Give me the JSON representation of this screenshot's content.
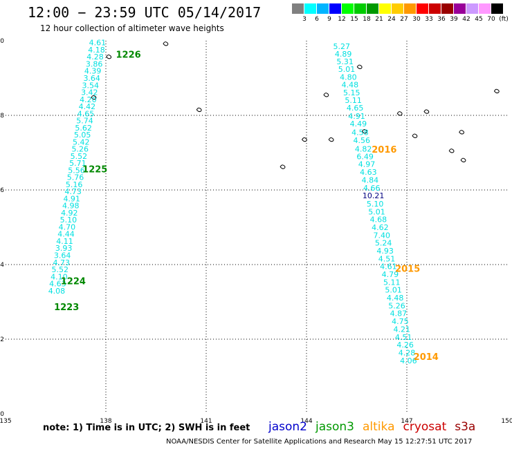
{
  "title": "12:00 − 23:59 UTC 05/14/2017",
  "subtitle": "12 hour collection of altimeter wave heights",
  "legend": {
    "colors": [
      "#808080",
      "#00ffff",
      "#00b4ff",
      "#0000ff",
      "#00ff00",
      "#00cc00",
      "#009900",
      "#ffff00",
      "#ffcc00",
      "#ff9900",
      "#ff0000",
      "#cc0000",
      "#990000",
      "#990099",
      "#cc99ff",
      "#ff99ff",
      "#000000"
    ],
    "ticks": [
      "3",
      "6",
      "9",
      "12",
      "15",
      "18",
      "21",
      "24",
      "27",
      "30",
      "33",
      "36",
      "39",
      "42",
      "45",
      "70",
      "(ft)"
    ]
  },
  "map": {
    "lon_range": [
      135,
      150
    ],
    "lat_range": [
      0,
      10
    ],
    "lon_ticks": [
      "135",
      "138",
      "141",
      "144",
      "147",
      "150"
    ],
    "lat_ticks": [
      "0",
      "2",
      "4",
      "6",
      "8",
      "10"
    ],
    "grid": "dotted",
    "wave_color": "#00e0e0",
    "anomaly_color": "#000080",
    "tracks": [
      {
        "satellite": "jason3",
        "points": [
          {
            "lon": 137.75,
            "lat": 9.95,
            "swh": "4.61"
          },
          {
            "lon": 137.72,
            "lat": 9.76,
            "swh": "4.18"
          },
          {
            "lon": 137.68,
            "lat": 9.57,
            "swh": "4.28"
          },
          {
            "lon": 137.65,
            "lat": 9.38,
            "swh": "3.86"
          },
          {
            "lon": 137.61,
            "lat": 9.19,
            "swh": "4.39"
          },
          {
            "lon": 137.58,
            "lat": 9.0,
            "swh": "3.64"
          },
          {
            "lon": 137.54,
            "lat": 8.81,
            "swh": "3.54"
          },
          {
            "lon": 137.51,
            "lat": 8.62,
            "swh": "3.42"
          },
          {
            "lon": 137.47,
            "lat": 8.43,
            "swh": "4.20"
          },
          {
            "lon": 137.44,
            "lat": 8.24,
            "swh": "4.42"
          },
          {
            "lon": 137.4,
            "lat": 8.05,
            "swh": "4.65"
          },
          {
            "lon": 137.37,
            "lat": 7.86,
            "swh": "5.74"
          },
          {
            "lon": 137.33,
            "lat": 7.67,
            "swh": "5.62"
          },
          {
            "lon": 137.3,
            "lat": 7.48,
            "swh": "5.05"
          },
          {
            "lon": 137.26,
            "lat": 7.29,
            "swh": "5.42"
          },
          {
            "lon": 137.23,
            "lat": 7.1,
            "swh": "5.26"
          },
          {
            "lon": 137.19,
            "lat": 6.91,
            "swh": "5.52"
          },
          {
            "lon": 137.16,
            "lat": 6.72,
            "swh": "5.71"
          },
          {
            "lon": 137.12,
            "lat": 6.53,
            "swh": "5.56"
          },
          {
            "lon": 137.09,
            "lat": 6.34,
            "swh": "5.76"
          },
          {
            "lon": 137.05,
            "lat": 6.15,
            "swh": "5.16"
          },
          {
            "lon": 137.02,
            "lat": 5.96,
            "swh": "4.73"
          },
          {
            "lon": 136.98,
            "lat": 5.77,
            "swh": "4.91"
          },
          {
            "lon": 136.95,
            "lat": 5.58,
            "swh": "4.98"
          },
          {
            "lon": 136.91,
            "lat": 5.39,
            "swh": "4.92"
          },
          {
            "lon": 136.88,
            "lat": 5.2,
            "swh": "5.10"
          },
          {
            "lon": 136.84,
            "lat": 5.01,
            "swh": "4.70"
          },
          {
            "lon": 136.81,
            "lat": 4.82,
            "swh": "4.44"
          },
          {
            "lon": 136.77,
            "lat": 4.63,
            "swh": "4.11"
          },
          {
            "lon": 136.74,
            "lat": 4.44,
            "swh": "3.93"
          },
          {
            "lon": 136.7,
            "lat": 4.25,
            "swh": "3.64"
          },
          {
            "lon": 136.67,
            "lat": 4.06,
            "swh": "4.73"
          },
          {
            "lon": 136.63,
            "lat": 3.87,
            "swh": "5.52"
          },
          {
            "lon": 136.6,
            "lat": 3.68,
            "swh": "4.10"
          },
          {
            "lon": 136.56,
            "lat": 3.49,
            "swh": "4.63"
          },
          {
            "lon": 136.53,
            "lat": 3.3,
            "swh": "4.08"
          }
        ],
        "times": [
          {
            "lon": 138.3,
            "lat": 9.62,
            "text": "1226"
          },
          {
            "lon": 137.3,
            "lat": 6.55,
            "text": "1225"
          },
          {
            "lon": 136.65,
            "lat": 3.55,
            "text": "1224"
          },
          {
            "lon": 136.45,
            "lat": 2.85,
            "text": "1223"
          }
        ]
      },
      {
        "satellite": "altika",
        "points": [
          {
            "lon": 145.05,
            "lat": 9.85,
            "swh": "5.27"
          },
          {
            "lon": 145.1,
            "lat": 9.65,
            "swh": "4.89"
          },
          {
            "lon": 145.15,
            "lat": 9.44,
            "swh": "5.31"
          },
          {
            "lon": 145.2,
            "lat": 9.24,
            "swh": "5.01"
          },
          {
            "lon": 145.25,
            "lat": 9.03,
            "swh": "4.80"
          },
          {
            "lon": 145.3,
            "lat": 8.82,
            "swh": "4.48"
          },
          {
            "lon": 145.35,
            "lat": 8.61,
            "swh": "5.15"
          },
          {
            "lon": 145.4,
            "lat": 8.41,
            "swh": "5.11"
          },
          {
            "lon": 145.45,
            "lat": 8.2,
            "swh": "4.65"
          },
          {
            "lon": 145.5,
            "lat": 7.98,
            "swh": "4.91"
          },
          {
            "lon": 145.55,
            "lat": 7.78,
            "swh": "4.49"
          },
          {
            "lon": 145.6,
            "lat": 7.55,
            "swh": "4.58"
          },
          {
            "lon": 145.65,
            "lat": 7.33,
            "swh": "4.56"
          },
          {
            "lon": 145.7,
            "lat": 7.1,
            "swh": "4.82"
          },
          {
            "lon": 145.75,
            "lat": 6.9,
            "swh": "6.49"
          },
          {
            "lon": 145.8,
            "lat": 6.69,
            "swh": "4.97"
          },
          {
            "lon": 145.85,
            "lat": 6.48,
            "swh": "4.63"
          },
          {
            "lon": 145.9,
            "lat": 6.27,
            "swh": "4.84"
          },
          {
            "lon": 145.95,
            "lat": 6.06,
            "swh": "4.66"
          },
          {
            "lon": 146.0,
            "lat": 5.85,
            "swh": "10.21"
          },
          {
            "lon": 146.05,
            "lat": 5.63,
            "swh": "5.10"
          },
          {
            "lon": 146.1,
            "lat": 5.42,
            "swh": "5.01"
          },
          {
            "lon": 146.15,
            "lat": 5.21,
            "swh": "4.68"
          },
          {
            "lon": 146.2,
            "lat": 5.0,
            "swh": "4.62"
          },
          {
            "lon": 146.25,
            "lat": 4.79,
            "swh": "7.40"
          },
          {
            "lon": 146.3,
            "lat": 4.58,
            "swh": "5.24"
          },
          {
            "lon": 146.35,
            "lat": 4.37,
            "swh": "4.93"
          },
          {
            "lon": 146.4,
            "lat": 4.16,
            "swh": "4.51"
          },
          {
            "lon": 146.45,
            "lat": 3.95,
            "swh": "4.61"
          },
          {
            "lon": 146.5,
            "lat": 3.74,
            "swh": "4.79"
          },
          {
            "lon": 146.55,
            "lat": 3.53,
            "swh": "5.11"
          },
          {
            "lon": 146.6,
            "lat": 3.32,
            "swh": "5.01"
          },
          {
            "lon": 146.65,
            "lat": 3.11,
            "swh": "4.48"
          },
          {
            "lon": 146.7,
            "lat": 2.9,
            "swh": "5.26"
          },
          {
            "lon": 146.75,
            "lat": 2.69,
            "swh": "4.87"
          },
          {
            "lon": 146.8,
            "lat": 2.48,
            "swh": "4.75"
          },
          {
            "lon": 146.85,
            "lat": 2.27,
            "swh": "4.21"
          },
          {
            "lon": 146.9,
            "lat": 2.06,
            "swh": "4.51"
          },
          {
            "lon": 146.95,
            "lat": 1.85,
            "swh": "4.26"
          },
          {
            "lon": 147.0,
            "lat": 1.64,
            "swh": "4.28"
          },
          {
            "lon": 147.05,
            "lat": 1.43,
            "swh": "4.06"
          }
        ],
        "times": [
          {
            "lon": 145.95,
            "lat": 7.07,
            "text": "2016"
          },
          {
            "lon": 146.65,
            "lat": 3.88,
            "text": "2015"
          },
          {
            "lon": 147.2,
            "lat": 1.52,
            "text": "2014"
          }
        ]
      }
    ],
    "islands": [
      {
        "lon": 138.1,
        "lat": 9.57
      },
      {
        "lon": 137.65,
        "lat": 8.48
      },
      {
        "lon": 139.8,
        "lat": 9.92
      },
      {
        "lon": 140.8,
        "lat": 8.15
      },
      {
        "lon": 143.95,
        "lat": 7.35
      },
      {
        "lon": 143.3,
        "lat": 6.62
      },
      {
        "lon": 144.6,
        "lat": 8.55
      },
      {
        "lon": 144.75,
        "lat": 7.35
      },
      {
        "lon": 145.6,
        "lat": 9.3
      },
      {
        "lon": 145.75,
        "lat": 7.57
      },
      {
        "lon": 147.25,
        "lat": 7.45
      },
      {
        "lon": 146.8,
        "lat": 8.05
      },
      {
        "lon": 147.6,
        "lat": 8.1
      },
      {
        "lon": 148.65,
        "lat": 7.55
      },
      {
        "lon": 148.35,
        "lat": 7.05
      },
      {
        "lon": 148.7,
        "lat": 6.8
      },
      {
        "lon": 149.7,
        "lat": 8.65
      }
    ]
  },
  "note": "note:  1) Time is in UTC;  2) SWH is in feet",
  "missions": [
    {
      "name": "jason2",
      "color": "#0000cc"
    },
    {
      "name": "jason3",
      "color": "#009900"
    },
    {
      "name": "altika",
      "color": "#ff9900"
    },
    {
      "name": "cryosat",
      "color": "#cc0000"
    },
    {
      "name": "s3a",
      "color": "#990000"
    }
  ],
  "credit": "NOAA/NESDIS Center for Satellite Applications and Research     May 15 12:27:51 UTC 2017",
  "time_colors": {
    "jason3": "#008800",
    "altika": "#ff9900"
  }
}
